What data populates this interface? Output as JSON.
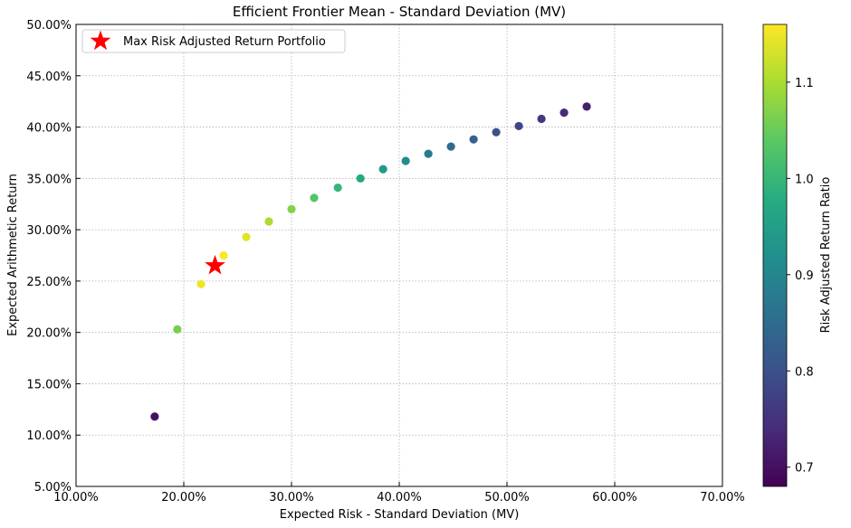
{
  "chart_data": {
    "type": "scatter",
    "title": "Efficient Frontier Mean - Standard Deviation (MV)",
    "xlabel": "Expected Risk - Standard Deviation (MV)",
    "ylabel": "Expected Arithmetic Return",
    "xlim": [
      0.1,
      0.7
    ],
    "ylim": [
      0.05,
      0.5
    ],
    "xticks": [
      0.1,
      0.2,
      0.3,
      0.4,
      0.5,
      0.6,
      0.7
    ],
    "xtick_labels": [
      "10.00%",
      "20.00%",
      "30.00%",
      "40.00%",
      "50.00%",
      "60.00%",
      "70.00%"
    ],
    "yticks": [
      0.05,
      0.1,
      0.15,
      0.2,
      0.25,
      0.3,
      0.35,
      0.4,
      0.45,
      0.5
    ],
    "ytick_labels": [
      "5.00%",
      "10.00%",
      "15.00%",
      "20.00%",
      "25.00%",
      "30.00%",
      "35.00%",
      "40.00%",
      "45.00%",
      "50.00%"
    ],
    "grid": true,
    "grid_style": "dotted",
    "colormap": "viridis",
    "points": [
      {
        "x": 0.173,
        "y": 0.118,
        "c": 0.7
      },
      {
        "x": 0.194,
        "y": 0.203,
        "c": 1.06
      },
      {
        "x": 0.216,
        "y": 0.247,
        "c": 1.15
      },
      {
        "x": 0.237,
        "y": 0.275,
        "c": 1.16
      },
      {
        "x": 0.258,
        "y": 0.293,
        "c": 1.14
      },
      {
        "x": 0.279,
        "y": 0.308,
        "c": 1.1
      },
      {
        "x": 0.3,
        "y": 0.32,
        "c": 1.07
      },
      {
        "x": 0.321,
        "y": 0.331,
        "c": 1.03
      },
      {
        "x": 0.343,
        "y": 0.341,
        "c": 1.0
      },
      {
        "x": 0.364,
        "y": 0.35,
        "c": 0.97
      },
      {
        "x": 0.385,
        "y": 0.359,
        "c": 0.94
      },
      {
        "x": 0.406,
        "y": 0.367,
        "c": 0.91
      },
      {
        "x": 0.427,
        "y": 0.374,
        "c": 0.88
      },
      {
        "x": 0.448,
        "y": 0.381,
        "c": 0.85
      },
      {
        "x": 0.469,
        "y": 0.388,
        "c": 0.83
      },
      {
        "x": 0.49,
        "y": 0.395,
        "c": 0.8
      },
      {
        "x": 0.511,
        "y": 0.401,
        "c": 0.78
      },
      {
        "x": 0.532,
        "y": 0.408,
        "c": 0.76
      },
      {
        "x": 0.553,
        "y": 0.414,
        "c": 0.74
      },
      {
        "x": 0.574,
        "y": 0.42,
        "c": 0.72
      }
    ],
    "highlight": {
      "label": "Max Risk Adjusted Return Portfolio",
      "x": 0.229,
      "y": 0.265,
      "color": "#ff0000",
      "marker": "star"
    },
    "legend": {
      "location": "upper-left",
      "entries": [
        "Max Risk Adjusted Return Portfolio"
      ]
    },
    "colorbar": {
      "label": "Risk Adjusted Return Ratio",
      "range": [
        0.68,
        1.16
      ],
      "ticks": [
        0.7,
        0.8,
        0.9,
        1.0,
        1.1
      ],
      "tick_labels": [
        "0.7",
        "0.8",
        "0.9",
        "1.0",
        "1.1"
      ]
    }
  }
}
